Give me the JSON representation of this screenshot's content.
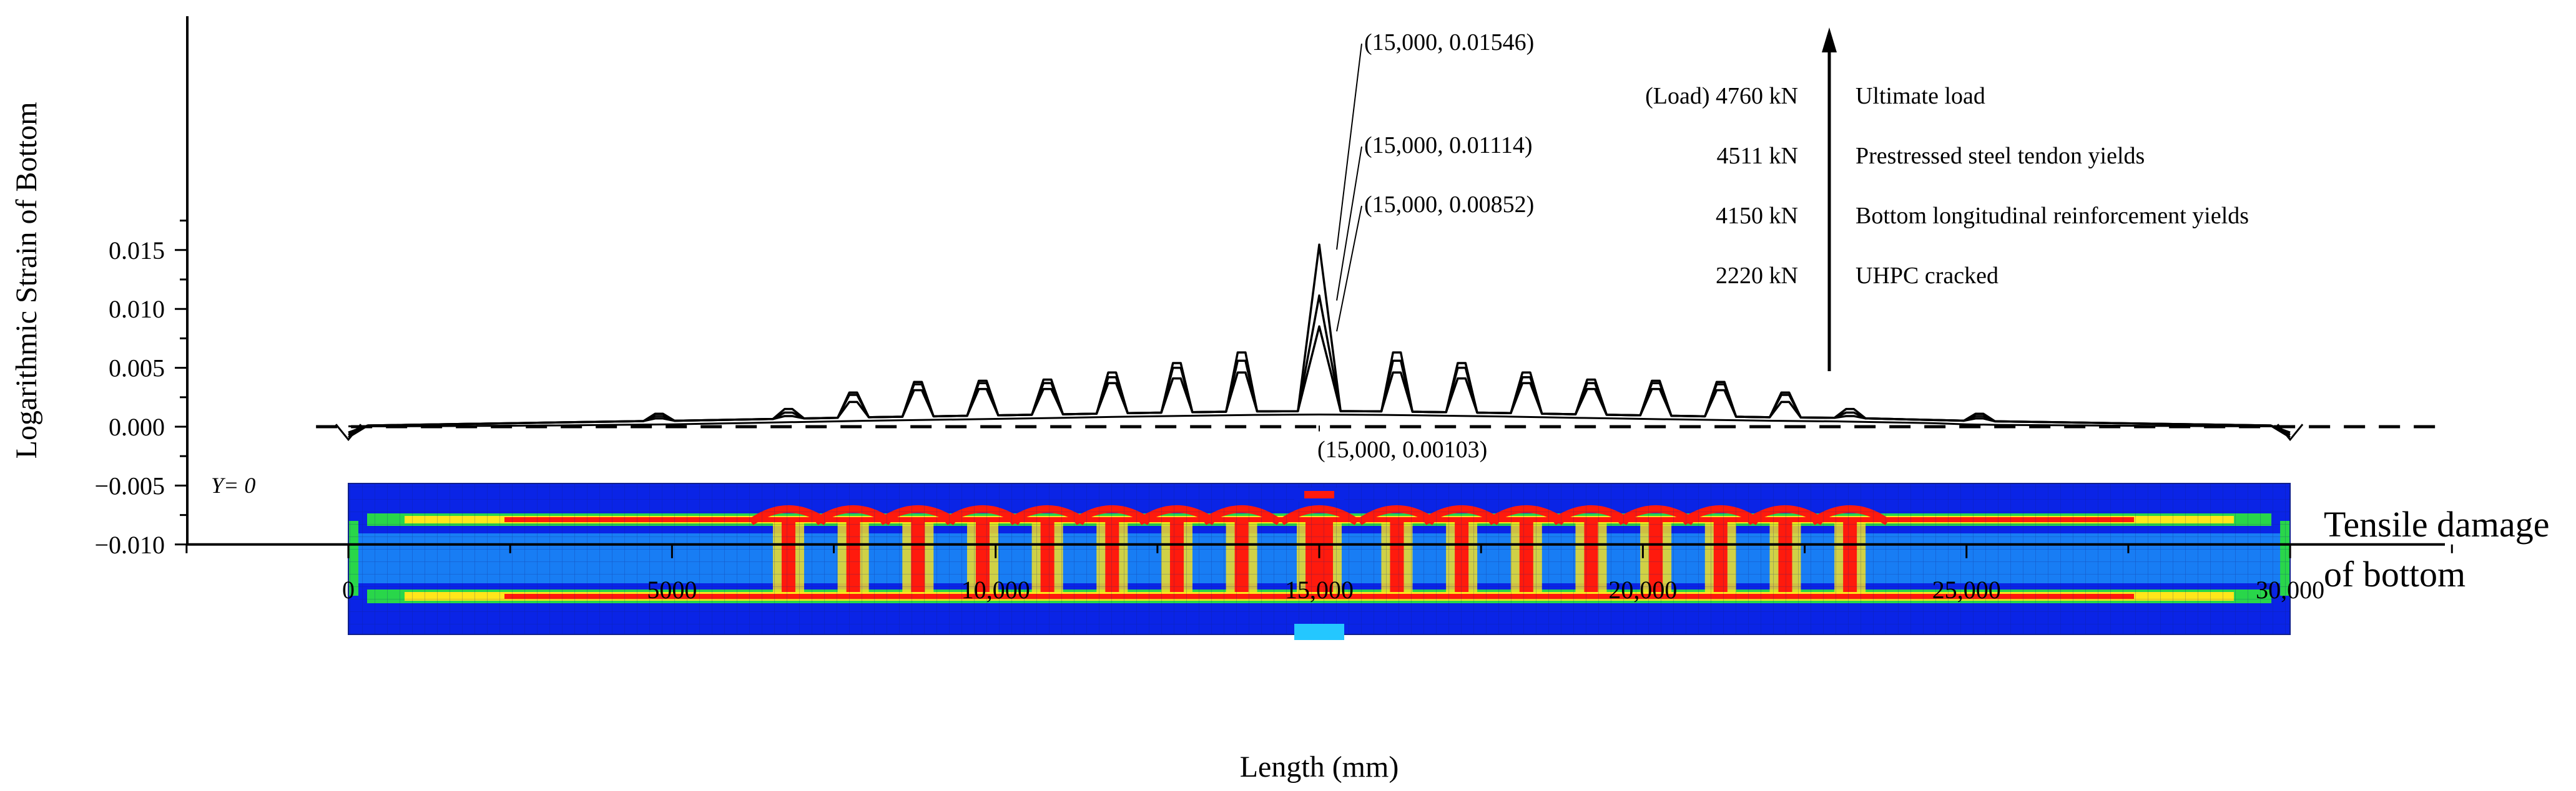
{
  "chart_data": {
    "type": "line",
    "title": "",
    "xlabel": "Length (mm)",
    "ylabel": "Logarithmic Strain of Bottom",
    "xlim": [
      -2500,
      32500
    ],
    "ylim": [
      -0.01,
      0.018
    ],
    "x_ticks": [
      0,
      5000,
      10000,
      15000,
      20000,
      25000,
      30000
    ],
    "x_tick_labels": [
      "0",
      "5000",
      "10,000",
      "15,000",
      "20,000",
      "25,000",
      "30,000"
    ],
    "y_ticks": [
      -0.01,
      -0.005,
      0.0,
      0.005,
      0.01,
      0.015
    ],
    "y_tick_labels": [
      "−0.010",
      "−0.005",
      "0.000",
      "0.005",
      "0.010",
      "0.015"
    ],
    "grid": false,
    "peak_x": [
      0,
      15000,
      30000
    ],
    "base_x": [
      0,
      500,
      1500,
      2500,
      3500,
      4000,
      5000,
      5500,
      6000,
      6500,
      7000,
      7500,
      8000,
      9000,
      10000,
      11000,
      12000,
      13000,
      14000,
      15000,
      16000,
      17000,
      18000,
      19000,
      20000,
      21000,
      22000,
      23000,
      23500,
      24000,
      24500,
      25000,
      25500,
      26500,
      27500,
      28500,
      29500,
      30000
    ],
    "base_y": [
      3e-05,
      3e-05,
      5e-05,
      8e-05,
      0.00012,
      0.00015,
      0.0002,
      0.00025,
      0.0003,
      0.00035,
      0.0004,
      0.00045,
      0.0005,
      0.00058,
      0.00066,
      0.00075,
      0.00085,
      0.00093,
      0.001,
      0.00103,
      0.001,
      0.00093,
      0.00085,
      0.00075,
      0.00066,
      0.00058,
      0.0005,
      0.00045,
      0.0004,
      0.00035,
      0.0003,
      0.0002,
      0.00015,
      0.00012,
      8e-05,
      5e-05,
      3e-05,
      3e-05
    ],
    "spike_x": [
      4800,
      6800,
      7800,
      8800,
      9800,
      10800,
      11800,
      12800,
      13800,
      15000,
      16200,
      17200,
      18200,
      19200,
      20200,
      21200,
      22200,
      23200,
      25200
    ],
    "series": [
      {
        "name": "(Load) 4760 kN",
        "spike_y": [
          0.0011,
          0.0015,
          0.0029,
          0.0038,
          0.0039,
          0.004,
          0.0046,
          0.0054,
          0.0063,
          0.01546,
          0.0063,
          0.0054,
          0.0046,
          0.004,
          0.0039,
          0.0038,
          0.0029,
          0.0015,
          0.0011
        ]
      },
      {
        "name": "4511 kN",
        "spike_y": [
          0.0009,
          0.0012,
          0.0027,
          0.0036,
          0.0037,
          0.0037,
          0.0042,
          0.005,
          0.0056,
          0.01114,
          0.0056,
          0.005,
          0.0042,
          0.0037,
          0.0037,
          0.0036,
          0.0027,
          0.0012,
          0.0009
        ]
      },
      {
        "name": "4150 kN",
        "spike_y": [
          0.0007,
          0.0009,
          0.0021,
          0.0031,
          0.0032,
          0.0032,
          0.0037,
          0.0041,
          0.0046,
          0.00852,
          0.0046,
          0.0041,
          0.0037,
          0.0032,
          0.0032,
          0.0031,
          0.0021,
          0.0009,
          0.0007
        ]
      },
      {
        "name": "2220 kN",
        "spike_y": []
      }
    ],
    "annotations": [
      {
        "text": "(15,000, 0.01546)",
        "x": 15000,
        "y": 0.01546
      },
      {
        "text": "(15,000, 0.01114)",
        "x": 15000,
        "y": 0.01114
      },
      {
        "text": "(15,000, 0.00852)",
        "x": 15000,
        "y": 0.00852
      },
      {
        "text": "(15,000, 0.00103)",
        "x": 15000,
        "y": 0.00103
      }
    ],
    "load_legend": [
      {
        "load": "(Load) 4760 kN",
        "label": "Ultimate load"
      },
      {
        "load": "4511 kN",
        "label": "Prestressed steel tendon yields"
      },
      {
        "load": "4150 kN",
        "label": "Bottom longitudinal reinforcement yields"
      },
      {
        "load": "2220 kN",
        "label": "UHPC cracked"
      }
    ],
    "contour_label": "Y= 0",
    "inset_labels": [
      "Tensile damage",
      "of bottom"
    ],
    "colors": {
      "lines": "#000000",
      "contour_low": "#0a24e6",
      "contour_mid": "#24c7ff",
      "contour_green": "#29d64a",
      "contour_yellow": "#ffe61a",
      "contour_high": "#ff1a0d"
    }
  }
}
